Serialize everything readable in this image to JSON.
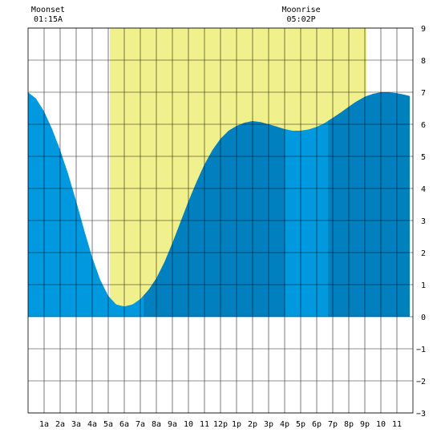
{
  "moon_events": [
    {
      "label": "Moonset",
      "time": "01:15A",
      "hour": 1.25
    },
    {
      "label": "Moonrise",
      "time": "05:02P",
      "hour": 17.03
    }
  ],
  "colors": {
    "daylight": "#F0F08C",
    "tide_light": "#0099E0",
    "tide_dark": "#0080BE",
    "grid": "#000000",
    "background": "#FFFFFF"
  },
  "chart_data": {
    "type": "area",
    "title": "",
    "xlabel": "",
    "ylabel": "",
    "xlim": [
      0,
      24
    ],
    "ylim": [
      -3,
      9
    ],
    "x_tick_labels": [
      "1a",
      "2a",
      "3a",
      "4a",
      "5a",
      "6a",
      "7a",
      "8a",
      "9a",
      "10",
      "11",
      "12p",
      "1p",
      "2p",
      "3p",
      "4p",
      "5p",
      "6p",
      "7p",
      "8p",
      "9p",
      "10",
      "11"
    ],
    "y_ticks": [
      9,
      8,
      7,
      6,
      5,
      4,
      3,
      2,
      1,
      0,
      -1,
      -2,
      -3
    ],
    "grid": true,
    "daylight_hours": [
      5.1,
      21.1
    ],
    "tide_bands": [
      {
        "shade": "light",
        "from": 0,
        "to": 7.2
      },
      {
        "shade": "dark",
        "from": 7.2,
        "to": 16.0
      },
      {
        "shade": "light",
        "from": 16.0,
        "to": 18.7
      },
      {
        "shade": "dark",
        "from": 18.7,
        "to": 23.8
      }
    ],
    "series": [
      {
        "x": [
          0,
          0.5,
          1,
          1.5,
          2,
          2.5,
          3,
          3.5,
          4,
          4.5,
          5,
          5.5,
          6,
          6.5,
          7,
          7.5,
          8,
          8.5,
          9,
          9.5,
          10,
          10.5,
          11,
          11.5,
          12,
          12.5,
          13,
          13.5,
          14,
          14.5,
          15,
          15.5,
          16,
          16.5,
          17,
          17.5,
          18,
          18.5,
          19,
          19.5,
          20,
          20.5,
          21,
          21.5,
          22,
          22.5,
          23,
          23.5,
          23.8
        ],
        "y": [
          7.0,
          6.8,
          6.4,
          5.85,
          5.2,
          4.45,
          3.6,
          2.7,
          1.85,
          1.15,
          0.65,
          0.38,
          0.32,
          0.38,
          0.55,
          0.83,
          1.2,
          1.7,
          2.3,
          2.95,
          3.6,
          4.2,
          4.75,
          5.2,
          5.55,
          5.8,
          5.95,
          6.05,
          6.1,
          6.07,
          6.0,
          5.93,
          5.85,
          5.8,
          5.8,
          5.84,
          5.92,
          6.04,
          6.2,
          6.37,
          6.55,
          6.72,
          6.86,
          6.95,
          7.0,
          7.0,
          6.97,
          6.92,
          6.88
        ]
      }
    ]
  }
}
